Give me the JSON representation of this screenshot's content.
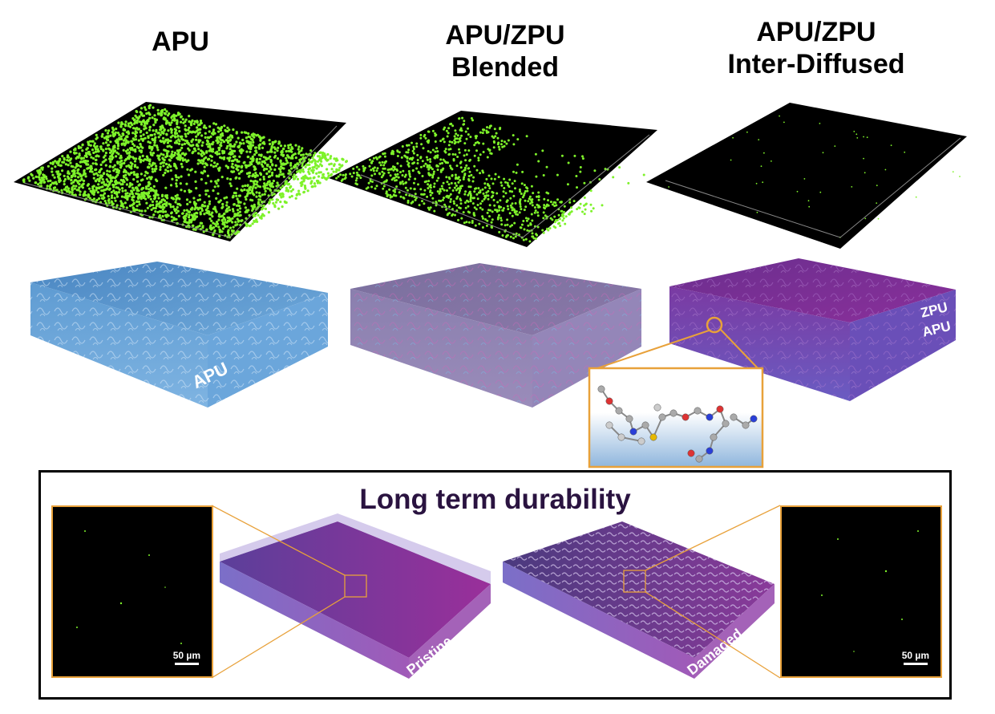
{
  "columns": [
    {
      "title_line1": "APU",
      "title_line2": ""
    },
    {
      "title_line1": "APU/ZPU",
      "title_line2": "Blended"
    },
    {
      "title_line1": "APU/ZPU",
      "title_line2": "Inter-Diffused"
    }
  ],
  "slabs": {
    "apu_label": "APU",
    "interdiffused_top_label": "ZPU",
    "interdiffused_bottom_label": "APU"
  },
  "durability": {
    "title": "Long term durability",
    "pristine_label": "Pristine",
    "damaged_label": "Damaged",
    "scale_left": "50 µm",
    "scale_right": "50 µm"
  },
  "colors": {
    "fluorescence_green": "#7ef22a",
    "apu_blue": "#5b9bd5",
    "zpu_purple": "#8a2f9a",
    "callout_orange": "#e8a13a",
    "title_dark": "#2a1340"
  }
}
